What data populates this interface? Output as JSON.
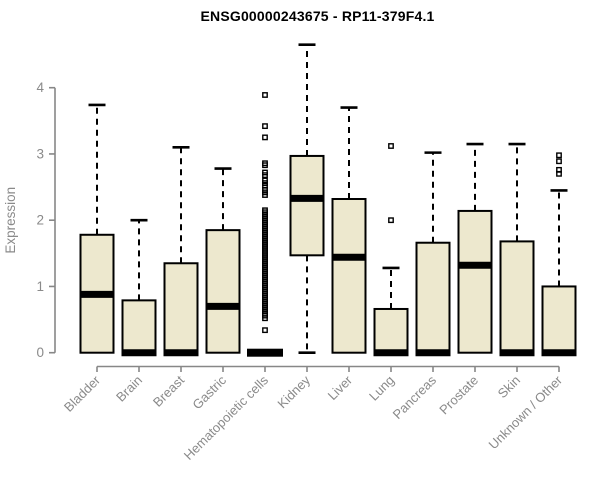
{
  "chart_data": {
    "type": "boxplot",
    "title": "ENSG00000243675 - RP11-379F4.1",
    "ylabel": "Expression",
    "xlabel": "",
    "ylim": [
      0,
      4.7
    ],
    "yticks": [
      0,
      1,
      2,
      3,
      4
    ],
    "grid": "off",
    "legend": "none",
    "colors": {
      "box_fill": "#EDE8CE",
      "box_stroke": "#000000",
      "axis": "#878787",
      "tick_label": "#8a8a8a",
      "title": "#000000"
    },
    "categories": [
      "Bladder",
      "Brain",
      "Breast",
      "Gastric",
      "Hematopoietic cells",
      "Kidney",
      "Liver",
      "Lung",
      "Pancreas",
      "Prostate",
      "Skin",
      "Unknown / Other"
    ],
    "series": [
      {
        "name": "Bladder",
        "whisker_low": 0,
        "q1": 0,
        "median": 0.88,
        "q3": 1.78,
        "whisker_high": 3.74,
        "outliers": []
      },
      {
        "name": "Brain",
        "whisker_low": 0,
        "q1": 0,
        "median": 0,
        "q3": 0.79,
        "whisker_high": 2.0,
        "outliers": []
      },
      {
        "name": "Breast",
        "whisker_low": 0,
        "q1": 0,
        "median": 0,
        "q3": 1.35,
        "whisker_high": 3.1,
        "outliers": []
      },
      {
        "name": "Gastric",
        "whisker_low": 0,
        "q1": 0,
        "median": 0.7,
        "q3": 1.85,
        "whisker_high": 2.78,
        "outliers": []
      },
      {
        "name": "Hematopoietic cells",
        "whisker_low": 0,
        "q1": 0,
        "median": 0,
        "q3": 0,
        "whisker_high": 0,
        "outliers": [
          3.89,
          3.42,
          3.25,
          2.86,
          2.83,
          2.72,
          2.68,
          2.6,
          2.56,
          2.52,
          2.46,
          2.42,
          2.38,
          2.15,
          2.12,
          2.09,
          2.06,
          2.03,
          2.0,
          1.97,
          1.94,
          1.91,
          1.88,
          1.85,
          1.82,
          1.79,
          1.76,
          1.73,
          1.7,
          1.67,
          1.64,
          1.61,
          1.58,
          1.55,
          1.52,
          1.49,
          1.46,
          1.43,
          1.4,
          1.37,
          1.34,
          1.31,
          1.28,
          1.25,
          1.22,
          1.19,
          1.16,
          1.13,
          1.1,
          1.07,
          1.04,
          1.01,
          0.98,
          0.95,
          0.92,
          0.89,
          0.86,
          0.83,
          0.8,
          0.77,
          0.74,
          0.71,
          0.68,
          0.65,
          0.62,
          0.59,
          0.56,
          0.52,
          0.34
        ]
      },
      {
        "name": "Kidney",
        "whisker_low": 0,
        "q1": 1.47,
        "median": 2.33,
        "q3": 2.97,
        "whisker_high": 4.65,
        "outliers": []
      },
      {
        "name": "Liver",
        "whisker_low": 0,
        "q1": 0,
        "median": 1.44,
        "q3": 2.32,
        "whisker_high": 3.7,
        "outliers": []
      },
      {
        "name": "Lung",
        "whisker_low": 0,
        "q1": 0,
        "median": 0,
        "q3": 0.66,
        "whisker_high": 1.28,
        "outliers": [
          2.0,
          3.12
        ]
      },
      {
        "name": "Pancreas",
        "whisker_low": 0,
        "q1": 0,
        "median": 0,
        "q3": 1.66,
        "whisker_high": 3.02,
        "outliers": []
      },
      {
        "name": "Prostate",
        "whisker_low": 0,
        "q1": 0,
        "median": 1.32,
        "q3": 2.14,
        "whisker_high": 3.15,
        "outliers": []
      },
      {
        "name": "Skin",
        "whisker_low": 0,
        "q1": 0,
        "median": 0,
        "q3": 1.68,
        "whisker_high": 3.15,
        "outliers": []
      },
      {
        "name": "Unknown / Other",
        "whisker_low": 0,
        "q1": 0,
        "median": 0,
        "q3": 1.0,
        "whisker_high": 2.45,
        "outliers": [
          2.7,
          2.76,
          2.89,
          2.98
        ]
      }
    ]
  }
}
